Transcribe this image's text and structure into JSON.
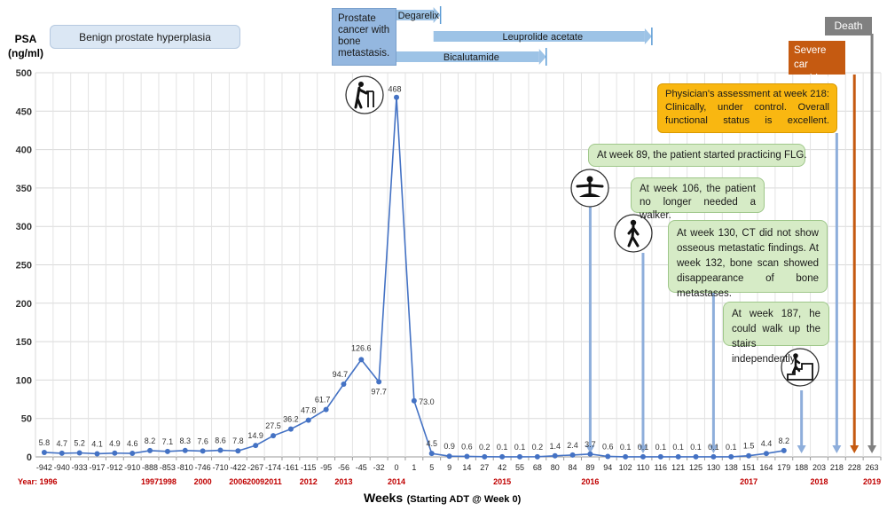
{
  "chart_data": {
    "type": "line",
    "ylabel_line1": "PSA",
    "ylabel_line2": "(ng/ml)",
    "xlabel": "Weeks",
    "xlabel_sub": "(Starting ADT @ Week 0)",
    "ylim": [
      0,
      500
    ],
    "yticks": [
      "0",
      "50",
      "100",
      "150",
      "200",
      "250",
      "300",
      "350",
      "400",
      "450",
      "500"
    ],
    "grid": true,
    "categories": [
      "-942",
      "-940",
      "-933",
      "-917",
      "-912",
      "-910",
      "-888",
      "-853",
      "-810",
      "-746",
      "-710",
      "-422",
      "-267",
      "-174",
      "-161",
      "-115",
      "-95",
      "-56",
      "-45",
      "-32",
      "0",
      "1",
      "5",
      "9",
      "14",
      "27",
      "42",
      "55",
      "68",
      "80",
      "84",
      "89",
      "94",
      "102",
      "110",
      "116",
      "121",
      "125",
      "130",
      "138",
      "151",
      "164",
      "179",
      "188",
      "203",
      "218",
      "228",
      "263"
    ],
    "series": [
      {
        "color": "#4472c4",
        "values": [
          5.8,
          4.7,
          5.2,
          4.1,
          4.9,
          4.6,
          8.2,
          7.1,
          8.3,
          7.6,
          8.6,
          7.8,
          14.9,
          27.5,
          36.2,
          47.8,
          61.7,
          94.7,
          126.6,
          97.7,
          468,
          73.0,
          4.5,
          0.9,
          0.6,
          0.2,
          0.1,
          0.1,
          0.2,
          1.4,
          2.4,
          3.7,
          0.6,
          0.1,
          0.1,
          0.1,
          0.1,
          0.1,
          0.1,
          0.1,
          1.5,
          4.4,
          8.2,
          null,
          null,
          null,
          null,
          null
        ],
        "labels": [
          "5.8",
          "4.7",
          "5.2",
          "4.1",
          "4.9",
          "4.6",
          "8.2",
          "7.1",
          "8.3",
          "7.6",
          "8.6",
          "7.8",
          "14.9",
          "27.5",
          "36.2",
          "47.8",
          "61.7",
          "94.7",
          "126.6",
          "97.7",
          "468",
          "73.0",
          "4.5",
          "0.9",
          "0.6",
          "0.2",
          "0.1",
          "0.1",
          "0.2",
          "1.4",
          "2.4",
          "3.7",
          "0.6",
          "0.1",
          "0.1",
          "0.1",
          "0.1",
          "0.1",
          "0.1",
          "0.1",
          "1.5",
          "4.4",
          "8.2",
          "",
          "",
          "",
          "",
          ""
        ]
      }
    ],
    "year_labels": [
      {
        "category": "-942",
        "label": "Year: 1996"
      },
      {
        "category": "-888",
        "label": "1997"
      },
      {
        "category": "-853",
        "label": "1998"
      },
      {
        "category": "-746",
        "label": "2000"
      },
      {
        "category": "-422",
        "label": "2006"
      },
      {
        "category": "-267",
        "label": "2009"
      },
      {
        "category": "-174",
        "label": "2011"
      },
      {
        "category": "-115",
        "label": "2012"
      },
      {
        "category": "-56",
        "label": "2013"
      },
      {
        "category": "0",
        "label": "2014"
      },
      {
        "category": "42",
        "label": "2015"
      },
      {
        "category": "89",
        "label": "2016"
      },
      {
        "category": "151",
        "label": "2017"
      },
      {
        "category": "203",
        "label": "2018"
      },
      {
        "category": "263",
        "label": "2019"
      }
    ],
    "year_color": "#c00000",
    "event_arrows": [
      {
        "category": "89",
        "color": "#8eaedb"
      },
      {
        "category": "110",
        "color": "#8eaedb"
      },
      {
        "category": "130",
        "color": "#8eaedb"
      },
      {
        "category": "188",
        "color": "#8eaedb"
      },
      {
        "category": "218",
        "color": "#8eaedb"
      },
      {
        "category": "228",
        "color": "#c55a11"
      },
      {
        "category": "263",
        "color": "#808080"
      }
    ],
    "treatments": [
      {
        "label": "Degarelix",
        "start": "0",
        "end": "5"
      },
      {
        "label": "Leuprolide acetate",
        "start": "5",
        "end": "110"
      },
      {
        "label": "Bicalutamide",
        "start": "0",
        "end": "68"
      }
    ],
    "treatment_color": "#9dc3e6",
    "icons": [
      {
        "name": "walker-icon",
        "category": "-45"
      },
      {
        "name": "meditation-icon",
        "category": "89"
      },
      {
        "name": "walking-person-icon",
        "category": "110"
      },
      {
        "name": "stairs-icon",
        "category": "188"
      }
    ]
  },
  "annotations": {
    "bph": "Benign prostate hyperplasia",
    "prostate_cancer": "Prostate cancer with bone metastasis.",
    "physician": "Physician's assessment at week 218: Clinically, under control. Overall functional status is excellent.",
    "car_accident": "Severe car accident",
    "death": "Death",
    "week89": "At week 89, the patient started practicing FLG.",
    "week106": "At week 106, the patient no longer needed a walker.",
    "week130": "At week 130, CT did not show osseous metastatic findings. At week 132, bone scan showed disappearance of bone metastases.",
    "week187": "At week 187, he could walk up the stairs independently."
  }
}
